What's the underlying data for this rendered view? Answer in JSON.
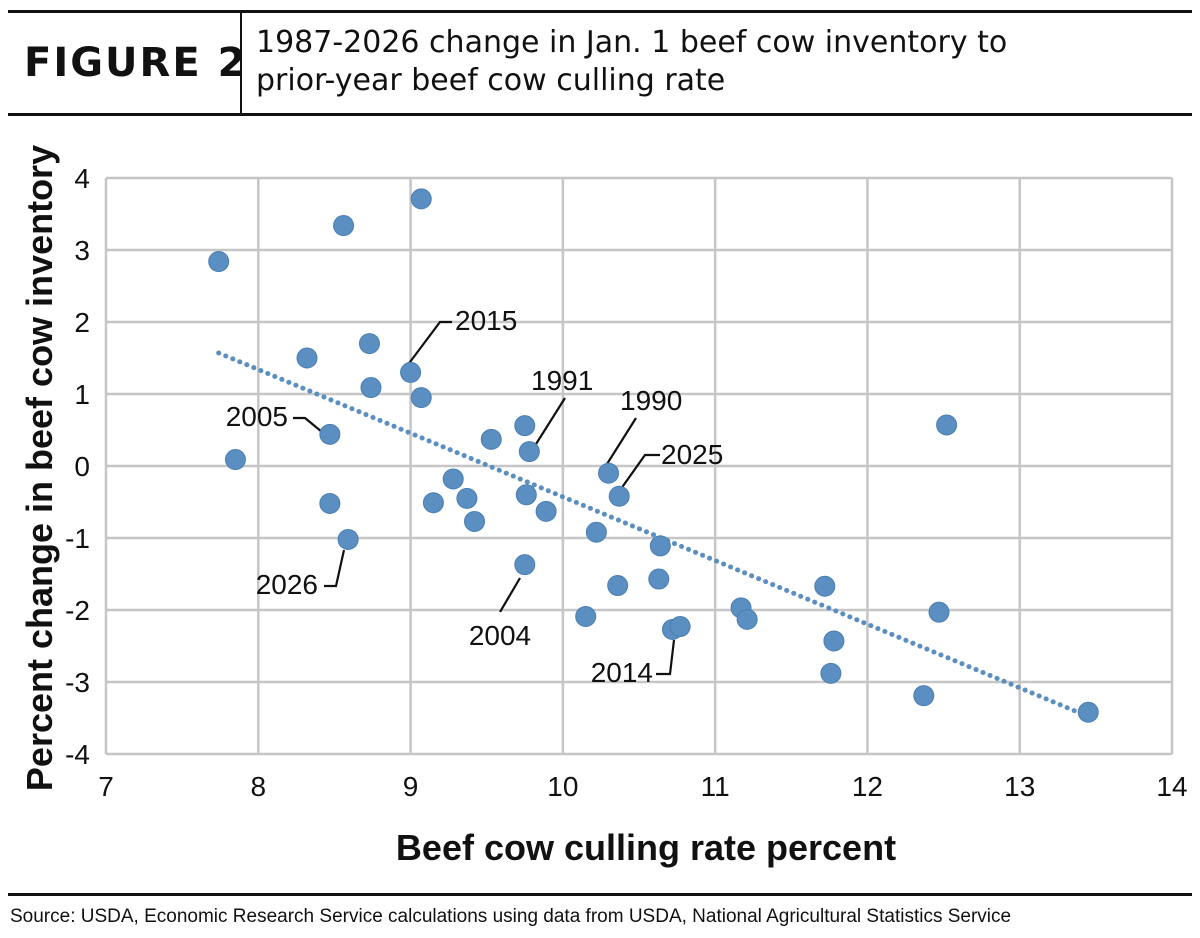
{
  "header": {
    "figure_label": "FIGURE 2",
    "title_line1": "1987-2026 change in Jan. 1 beef cow inventory to",
    "title_line2": "prior-year beef cow culling rate"
  },
  "source_note": "Source: USDA, Economic Research Service calculations using data from USDA, National Agricultural Statistics Service",
  "chart_data": {
    "type": "scatter",
    "xlabel": "Beef cow culling rate percent",
    "ylabel": "Percent change in beef cow inventory",
    "xlim": [
      7,
      14
    ],
    "ylim": [
      -4,
      4
    ],
    "xticks": [
      "7",
      "8",
      "9",
      "10",
      "11",
      "12",
      "13",
      "14"
    ],
    "yticks": [
      "-4",
      "-3",
      "-2",
      "-1",
      "0",
      "1",
      "2",
      "3",
      "4"
    ],
    "grid": true,
    "marker_color": "#5b8ec1",
    "trendline": {
      "style": "dotted",
      "color": "#5b8ec1",
      "from": [
        7.74,
        1.57
      ],
      "to": [
        13.44,
        -3.47
      ]
    },
    "points": [
      {
        "x": 7.74,
        "y": 2.84
      },
      {
        "x": 7.85,
        "y": 0.09
      },
      {
        "x": 8.32,
        "y": 1.5
      },
      {
        "x": 8.47,
        "y": 0.44
      },
      {
        "x": 8.47,
        "y": -0.52
      },
      {
        "x": 8.56,
        "y": 3.34
      },
      {
        "x": 8.59,
        "y": -1.02
      },
      {
        "x": 8.73,
        "y": 1.7
      },
      {
        "x": 8.74,
        "y": 1.09
      },
      {
        "x": 9.0,
        "y": 1.3
      },
      {
        "x": 9.07,
        "y": 3.71
      },
      {
        "x": 9.07,
        "y": 0.95
      },
      {
        "x": 9.15,
        "y": -0.51
      },
      {
        "x": 9.28,
        "y": -0.18
      },
      {
        "x": 9.37,
        "y": -0.45
      },
      {
        "x": 9.42,
        "y": -0.77
      },
      {
        "x": 9.53,
        "y": 0.37
      },
      {
        "x": 9.75,
        "y": 0.56
      },
      {
        "x": 9.75,
        "y": -1.37
      },
      {
        "x": 9.76,
        "y": -0.4
      },
      {
        "x": 9.78,
        "y": 0.2
      },
      {
        "x": 9.89,
        "y": -0.63
      },
      {
        "x": 10.15,
        "y": -2.09
      },
      {
        "x": 10.22,
        "y": -0.92
      },
      {
        "x": 10.3,
        "y": -0.1
      },
      {
        "x": 10.36,
        "y": -1.66
      },
      {
        "x": 10.37,
        "y": -0.42
      },
      {
        "x": 10.63,
        "y": -1.57
      },
      {
        "x": 10.64,
        "y": -1.11
      },
      {
        "x": 10.72,
        "y": -2.27
      },
      {
        "x": 10.77,
        "y": -2.23
      },
      {
        "x": 11.17,
        "y": -1.97
      },
      {
        "x": 11.21,
        "y": -2.13
      },
      {
        "x": 11.72,
        "y": -1.67
      },
      {
        "x": 11.76,
        "y": -2.88
      },
      {
        "x": 11.78,
        "y": -2.43
      },
      {
        "x": 12.37,
        "y": -3.19
      },
      {
        "x": 12.47,
        "y": -2.03
      },
      {
        "x": 12.52,
        "y": 0.57
      },
      {
        "x": 13.45,
        "y": -3.42
      }
    ],
    "annotations": [
      {
        "label": "2015",
        "x": 9.0,
        "y": 1.3
      },
      {
        "label": "1991",
        "x": 9.78,
        "y": 0.2
      },
      {
        "label": "1990",
        "x": 10.3,
        "y": -0.1
      },
      {
        "label": "2025",
        "x": 10.37,
        "y": -0.42
      },
      {
        "label": "2005",
        "x": 8.47,
        "y": 0.44
      },
      {
        "label": "2026",
        "x": 8.59,
        "y": -1.02
      },
      {
        "label": "2004",
        "x": 9.75,
        "y": -1.37
      },
      {
        "label": "2014",
        "x": 10.72,
        "y": -2.27
      }
    ]
  }
}
